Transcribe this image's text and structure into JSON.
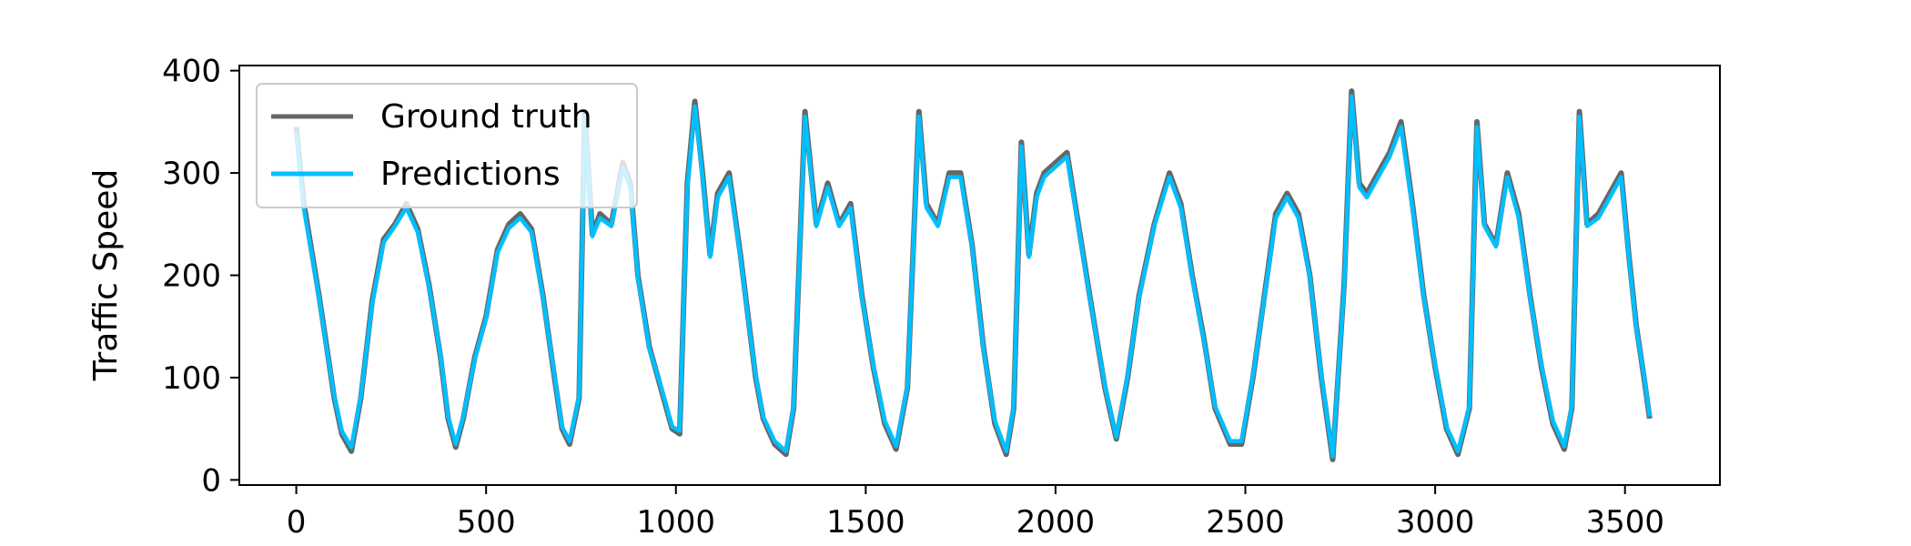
{
  "chart_data": {
    "type": "line",
    "ylabel": "Traffic Speed",
    "xlabel": "",
    "xlim": [
      -150,
      3750
    ],
    "ylim": [
      -5,
      405
    ],
    "xticks": [
      0,
      500,
      1000,
      1500,
      2000,
      2500,
      3000,
      3500
    ],
    "yticks": [
      0,
      100,
      200,
      300,
      400
    ],
    "legend": {
      "position": "upper-left"
    },
    "series": [
      {
        "name": "Ground truth",
        "color": "#666666",
        "x": [
          0,
          20,
          40,
          60,
          80,
          100,
          120,
          145,
          170,
          200,
          230,
          260,
          290,
          320,
          350,
          380,
          400,
          420,
          440,
          470,
          500,
          530,
          560,
          590,
          620,
          650,
          680,
          700,
          720,
          745,
          760,
          780,
          800,
          830,
          860,
          880,
          900,
          930,
          960,
          990,
          1010,
          1030,
          1050,
          1070,
          1090,
          1110,
          1140,
          1170,
          1190,
          1210,
          1230,
          1260,
          1290,
          1310,
          1340,
          1370,
          1400,
          1430,
          1460,
          1490,
          1520,
          1550,
          1580,
          1610,
          1640,
          1660,
          1690,
          1720,
          1750,
          1780,
          1810,
          1840,
          1870,
          1890,
          1910,
          1930,
          1950,
          1970,
          2000,
          2030,
          2060,
          2090,
          2130,
          2160,
          2190,
          2220,
          2260,
          2300,
          2330,
          2360,
          2390,
          2420,
          2460,
          2490,
          2520,
          2550,
          2580,
          2610,
          2640,
          2670,
          2700,
          2730,
          2760,
          2780,
          2800,
          2820,
          2850,
          2880,
          2910,
          2940,
          2970,
          3000,
          3030,
          3060,
          3090,
          3110,
          3130,
          3160,
          3190,
          3220,
          3250,
          3280,
          3310,
          3340,
          3360,
          3380,
          3400,
          3430,
          3460,
          3490,
          3510,
          3530,
          3550,
          3565
        ],
        "y": [
          345,
          270,
          225,
          180,
          130,
          80,
          45,
          28,
          80,
          175,
          235,
          250,
          270,
          245,
          190,
          120,
          60,
          32,
          60,
          120,
          160,
          225,
          250,
          260,
          245,
          180,
          100,
          50,
          35,
          80,
          360,
          240,
          260,
          250,
          310,
          290,
          200,
          130,
          90,
          50,
          45,
          290,
          370,
          300,
          220,
          280,
          300,
          220,
          160,
          100,
          60,
          35,
          25,
          70,
          360,
          250,
          290,
          250,
          270,
          180,
          110,
          55,
          30,
          90,
          360,
          270,
          250,
          300,
          300,
          230,
          130,
          55,
          25,
          70,
          330,
          220,
          280,
          300,
          310,
          320,
          250,
          180,
          90,
          40,
          100,
          180,
          250,
          300,
          270,
          200,
          140,
          70,
          35,
          35,
          100,
          180,
          260,
          280,
          260,
          200,
          100,
          20,
          190,
          380,
          290,
          280,
          300,
          320,
          350,
          270,
          180,
          110,
          50,
          25,
          70,
          350,
          250,
          230,
          300,
          260,
          180,
          110,
          55,
          30,
          70,
          360,
          250,
          260,
          280,
          300,
          220,
          150,
          100,
          60
        ]
      },
      {
        "name": "Predictions",
        "color": "#00bfff",
        "x": [
          0,
          20,
          40,
          60,
          80,
          100,
          120,
          145,
          170,
          200,
          230,
          260,
          290,
          320,
          350,
          380,
          400,
          420,
          440,
          470,
          500,
          530,
          560,
          590,
          620,
          650,
          680,
          700,
          720,
          745,
          760,
          780,
          800,
          830,
          860,
          880,
          900,
          930,
          960,
          990,
          1010,
          1030,
          1050,
          1070,
          1090,
          1110,
          1140,
          1170,
          1190,
          1210,
          1230,
          1260,
          1290,
          1310,
          1340,
          1370,
          1400,
          1430,
          1460,
          1490,
          1520,
          1550,
          1580,
          1610,
          1640,
          1660,
          1690,
          1720,
          1750,
          1780,
          1810,
          1840,
          1870,
          1890,
          1910,
          1930,
          1950,
          1970,
          2000,
          2030,
          2060,
          2090,
          2130,
          2160,
          2190,
          2220,
          2260,
          2300,
          2330,
          2360,
          2390,
          2420,
          2460,
          2490,
          2520,
          2550,
          2580,
          2610,
          2640,
          2670,
          2700,
          2730,
          2760,
          2780,
          2800,
          2820,
          2850,
          2880,
          2910,
          2940,
          2970,
          3000,
          3030,
          3060,
          3090,
          3110,
          3130,
          3160,
          3190,
          3220,
          3250,
          3280,
          3310,
          3340,
          3360,
          3380,
          3400,
          3430,
          3460,
          3490,
          3510,
          3530,
          3550,
          3565
        ],
        "y": [
          340,
          265,
          222,
          178,
          128,
          82,
          48,
          32,
          82,
          172,
          232,
          248,
          266,
          242,
          188,
          122,
          62,
          35,
          62,
          118,
          158,
          222,
          246,
          256,
          242,
          178,
          102,
          52,
          38,
          82,
          355,
          238,
          256,
          248,
          305,
          286,
          198,
          128,
          92,
          52,
          48,
          285,
          365,
          296,
          218,
          276,
          296,
          218,
          158,
          102,
          62,
          38,
          28,
          72,
          355,
          248,
          286,
          248,
          266,
          178,
          112,
          58,
          33,
          92,
          355,
          266,
          248,
          296,
          296,
          228,
          128,
          58,
          28,
          72,
          326,
          218,
          276,
          296,
          306,
          316,
          248,
          178,
          92,
          42,
          102,
          178,
          248,
          296,
          266,
          198,
          138,
          72,
          38,
          38,
          102,
          178,
          256,
          276,
          256,
          198,
          102,
          23,
          188,
          375,
          286,
          276,
          296,
          316,
          345,
          266,
          178,
          112,
          52,
          28,
          72,
          345,
          248,
          228,
          296,
          256,
          178,
          112,
          58,
          33,
          72,
          355,
          248,
          256,
          276,
          296,
          218,
          148,
          102,
          62
        ]
      }
    ]
  }
}
